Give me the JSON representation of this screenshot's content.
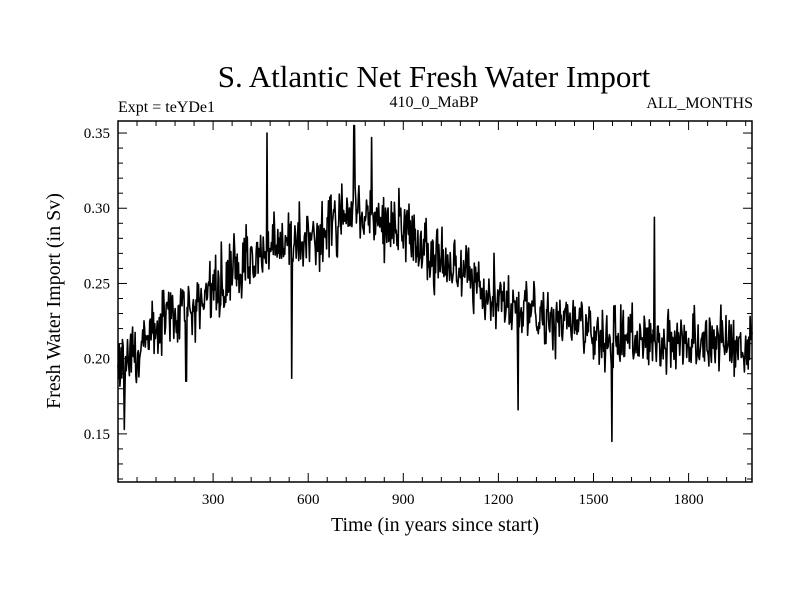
{
  "chart_data": {
    "type": "line",
    "title": "S. Atlantic Net Fresh Water Import",
    "subtitle_left": "Expt = teYDe1",
    "subtitle_center": "410_0_MaBP",
    "subtitle_right": "ALL_MONTHS",
    "xlabel": "Time (in years since start)",
    "ylabel": "Fresh Water Import (in Sv)",
    "xlim": [
      0,
      2000
    ],
    "ylim": [
      0.118,
      0.358
    ],
    "x_ticks": [
      300,
      600,
      900,
      1200,
      1500,
      1800
    ],
    "x_tick_labels": [
      "300",
      "600",
      "900",
      "1200",
      "1500",
      "1800"
    ],
    "y_ticks": [
      0.15,
      0.2,
      0.25,
      0.3,
      0.35
    ],
    "y_tick_labels": [
      "0.15",
      "0.20",
      "0.25",
      "0.30",
      "0.35"
    ],
    "x_minor_step": 60,
    "y_minor_step": 0.01,
    "grid": false,
    "line_color": "#000000",
    "series": [
      {
        "name": "net fresh water import",
        "x_start": 0,
        "x_step": 2,
        "trend_anchors": [
          [
            0,
            0.195
          ],
          [
            50,
            0.205
          ],
          [
            150,
            0.228
          ],
          [
            250,
            0.235
          ],
          [
            350,
            0.255
          ],
          [
            450,
            0.272
          ],
          [
            550,
            0.28
          ],
          [
            650,
            0.285
          ],
          [
            750,
            0.298
          ],
          [
            850,
            0.29
          ],
          [
            950,
            0.28
          ],
          [
            1050,
            0.26
          ],
          [
            1150,
            0.245
          ],
          [
            1250,
            0.235
          ],
          [
            1350,
            0.225
          ],
          [
            1450,
            0.225
          ],
          [
            1550,
            0.212
          ],
          [
            1650,
            0.212
          ],
          [
            1750,
            0.215
          ],
          [
            1850,
            0.21
          ],
          [
            2000,
            0.21
          ]
        ],
        "noise_amplitude": 0.018,
        "extremes": [
          [
            20,
            0.153
          ],
          [
            215,
            0.185
          ],
          [
            470,
            0.35
          ],
          [
            548,
            0.187
          ],
          [
            745,
            0.355
          ],
          [
            800,
            0.347
          ],
          [
            1262,
            0.166
          ],
          [
            1558,
            0.145
          ],
          [
            1692,
            0.294
          ]
        ]
      }
    ]
  }
}
